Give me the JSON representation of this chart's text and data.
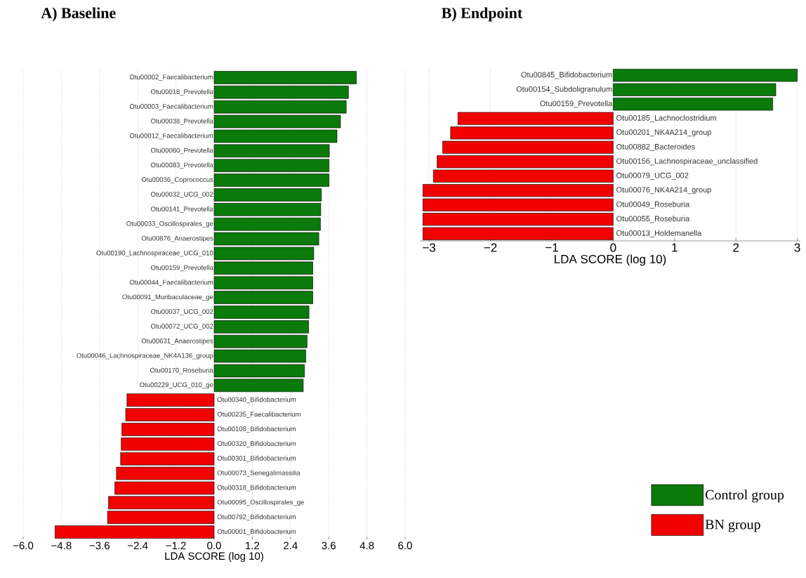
{
  "chart_data": [
    {
      "type": "bar",
      "orientation": "horizontal",
      "title": "A)  Baseline",
      "xlabel": "LDA SCORE (log 10)",
      "categories": [
        "Otu00002_Faecalibacterium",
        "Otu00018_Prevotella",
        "Otu00003_Faecalibacterium",
        "Otu00038_Prevotella",
        "Otu00012_Faecalibacterium",
        "Otu00060_Prevotella",
        "Otu00083_Prevotella",
        "Otu00036_Coprococcus",
        "Otu00032_UCG_002",
        "Otu00141_Prevotella",
        "Otu00033_Oscillospirales_ge",
        "Otu00876_Anaerostipes",
        "Otu00190_Lachnospiraceae_UCG_010",
        "Otu00159_Prevotella",
        "Otu00044_Faecalibacterium",
        "Otu00091_Muribaculaceae_ge",
        "Otu00037_UCG_002",
        "Otu00072_UCG_002",
        "Otu00631_Anaerostipes",
        "Otu00046_Lachnospiraceae_NK4A136_group",
        "Otu00170_Roseburia",
        "Otu00229_UCG_010_ge",
        "Otu00340_Bifidobacterium",
        "Otu00235_Faecalibacterium",
        "Otu00108_Bifidobacterium",
        "Otu00320_Bifidobacterium",
        "Otu00301_Bifidobacterium",
        "Otu00073_Senegalimassilia",
        "Otu00318_Bifidobacterium",
        "Otu00095_Oscillospirales_ge",
        "Otu00792_Bifidobacterium",
        "Otu00001_Bifidobacterium"
      ],
      "series": [
        {
          "color": "#0a7a0a",
          "values": [
            4.47,
            4.22,
            4.15,
            3.97,
            3.86,
            3.62,
            3.61,
            3.61,
            3.37,
            3.35,
            3.34,
            3.29,
            3.13,
            3.1,
            3.1,
            3.1,
            2.98,
            2.97,
            2.92,
            2.88,
            2.84,
            2.8,
            null,
            null,
            null,
            null,
            null,
            null,
            null,
            null,
            null,
            null
          ]
        },
        {
          "color": "#f20000",
          "values": [
            null,
            null,
            null,
            null,
            null,
            null,
            null,
            null,
            null,
            null,
            null,
            null,
            null,
            null,
            null,
            null,
            null,
            null,
            null,
            null,
            null,
            null,
            -2.74,
            -2.78,
            -2.9,
            -2.92,
            -2.94,
            -3.07,
            -3.12,
            -3.32,
            -3.35,
            -5.0
          ]
        }
      ],
      "xlim": [
        -6,
        6
      ],
      "xticks": [
        {
          "value": -6,
          "label": "−6.0"
        },
        {
          "value": -4.8,
          "label": "−4.8"
        },
        {
          "value": -3.6,
          "label": "−3.6"
        },
        {
          "value": -2.4,
          "label": "−2.4"
        },
        {
          "value": -1.2,
          "label": "−1.2"
        },
        {
          "value": 0,
          "label": "0.0"
        },
        {
          "value": 1.2,
          "label": "1.2"
        },
        {
          "value": 2.4,
          "label": "2.4"
        },
        {
          "value": 3.6,
          "label": "3.6"
        },
        {
          "value": 4.8,
          "label": "4.8"
        },
        {
          "value": 6,
          "label": "6.0"
        }
      ],
      "grid": "x"
    },
    {
      "type": "bar",
      "orientation": "horizontal",
      "title": "B) Endpoint",
      "xlabel": "LDA SCORE (log 10)",
      "categories": [
        "Otu00845_Bifidobacterium",
        "Otu00154_Subdoligranulum",
        "Otu00159_Prevotella",
        "Otu00185_Lachnoclostridium",
        "Otu00201_NK4A214_group",
        "Otu00882_Bacteroides",
        "Otu00156_Lachnospiraceae_unclassified",
        "Otu00079_UCG_002",
        "Otu00076_NK4A214_group",
        "Otu00049_Roseburia",
        "Otu00055_Roseburia",
        "Otu00013_Holdemanella"
      ],
      "series": [
        {
          "name": "Control group",
          "color": "#0a7a0a",
          "values": [
            3.0,
            2.65,
            2.6,
            null,
            null,
            null,
            null,
            null,
            null,
            null,
            null,
            null
          ]
        },
        {
          "name": "BN group",
          "color": "#f20000",
          "values": [
            null,
            null,
            null,
            -2.53,
            -2.65,
            -2.78,
            -2.87,
            -2.93,
            -3.1,
            -3.1,
            -3.1,
            -3.1
          ]
        }
      ],
      "xlim": [
        -3.15,
        3.05
      ],
      "xticks": [
        {
          "value": -3,
          "label": "−3"
        },
        {
          "value": -2,
          "label": "−2"
        },
        {
          "value": -1,
          "label": "−1"
        },
        0,
        1,
        2,
        3
      ],
      "grid": "x",
      "legend": "bottom right"
    }
  ]
}
